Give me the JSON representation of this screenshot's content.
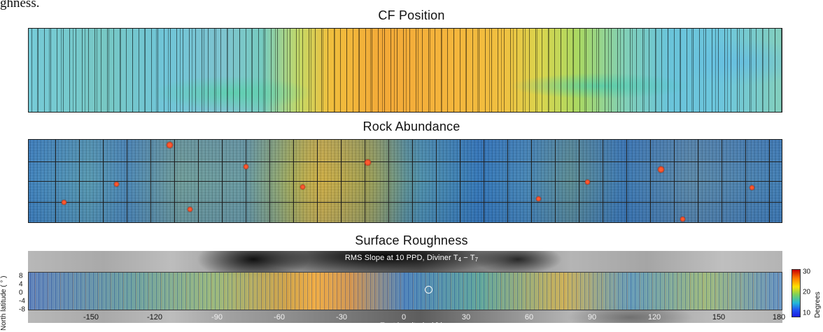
{
  "intro_fragment": "ghness.",
  "panels": {
    "cf_position": {
      "title": "CF Position"
    },
    "rock_abundance": {
      "title": "Rock Abundance"
    },
    "surface_roughness": {
      "title": "Surface Roughness",
      "subtitle_prefix": "RMS Slope at 10 PPD, Diviner ",
      "subtitle_t4": "T",
      "subtitle_sub4": "4",
      "subtitle_minus": " − ",
      "subtitle_t7": "T",
      "subtitle_sub7": "7",
      "y_axis_label": "North latitude ( ° )",
      "x_axis_label": "East longitude ( ° )",
      "x_ticks": [
        "-150",
        "-120",
        "-90",
        "-60",
        "-30",
        "0",
        "30",
        "60",
        "90",
        "120",
        "150",
        "180"
      ],
      "y_ticks": [
        "8",
        "4",
        "0",
        "-4",
        "-8"
      ],
      "colorbar": {
        "labels": [
          "30",
          "20",
          "10"
        ],
        "title": "Degrees",
        "colors": [
          "#c80000",
          "#ff7c00",
          "#ffe100",
          "#7dd15a",
          "#21b8da",
          "#2051f1",
          "#1c1ce0"
        ]
      }
    }
  }
}
